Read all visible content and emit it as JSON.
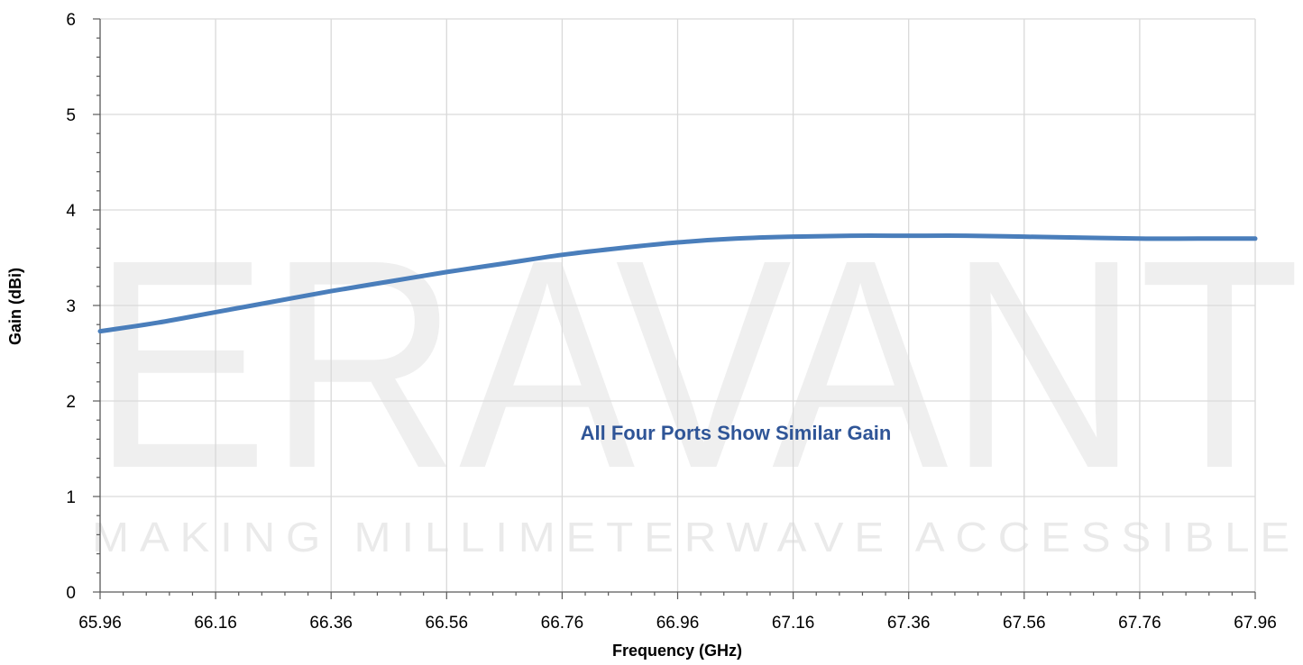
{
  "chart_data": {
    "type": "line",
    "title": "",
    "xlabel": "Frequency (GHz)",
    "ylabel": "Gain (dBi)",
    "xlim": [
      65.96,
      67.96
    ],
    "ylim": [
      0,
      6
    ],
    "x_ticks": [
      "65.96",
      "66.16",
      "66.36",
      "66.56",
      "66.76",
      "66.96",
      "67.16",
      "67.36",
      "67.56",
      "67.76",
      "67.96"
    ],
    "y_ticks": [
      "0",
      "1",
      "2",
      "3",
      "4",
      "5",
      "6"
    ],
    "grid": true,
    "legend": "none",
    "annotation": "All Four Ports Show Similar Gain",
    "watermark": {
      "main": "ERAVANT",
      "tagline": "MAKING MILLIMETERWAVE ACCESSIBLE"
    },
    "line_color": "#4a7ebb",
    "series": [
      {
        "x": [
          65.96,
          66.06,
          66.16,
          66.26,
          66.36,
          66.46,
          66.56,
          66.66,
          66.76,
          66.86,
          66.96,
          67.06,
          67.16,
          67.26,
          67.36,
          67.46,
          67.56,
          67.66,
          67.76,
          67.86,
          67.96
        ],
        "values": [
          2.73,
          2.82,
          2.93,
          3.04,
          3.15,
          3.25,
          3.35,
          3.44,
          3.53,
          3.6,
          3.66,
          3.7,
          3.72,
          3.73,
          3.73,
          3.73,
          3.72,
          3.71,
          3.7,
          3.7,
          3.7
        ]
      }
    ]
  }
}
